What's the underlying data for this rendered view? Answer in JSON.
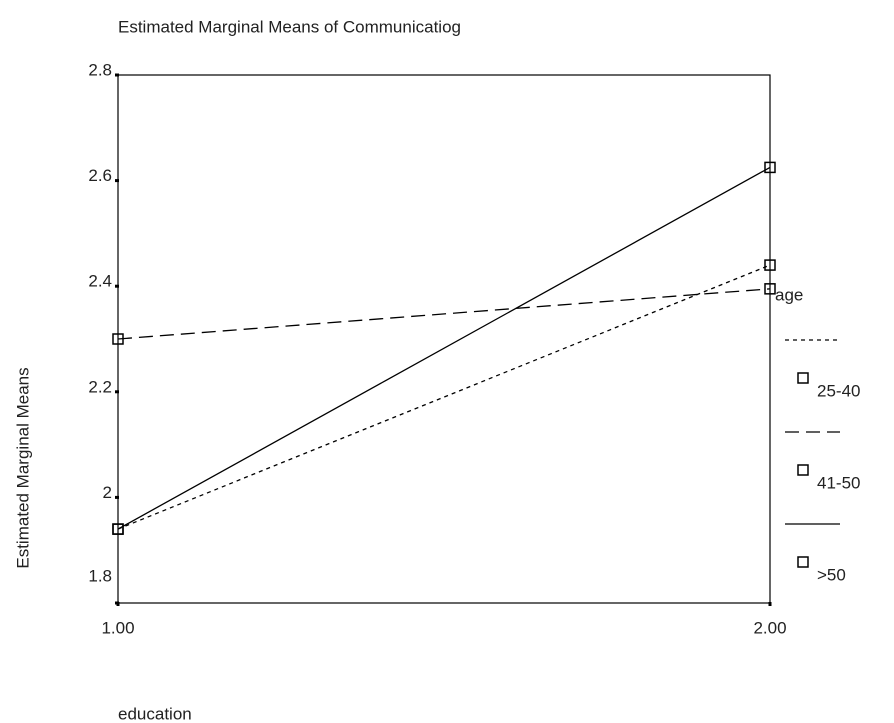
{
  "chart_data": {
    "type": "line",
    "title": "Estimated Marginal Means of Communicatiog",
    "x_label": "education",
    "y_label": "Estimated Marginal Means",
    "legend_title": "age",
    "x": [
      1,
      2
    ],
    "xlim": [
      1,
      2
    ],
    "xticks": [
      {
        "value": 1,
        "label": "1.00"
      },
      {
        "value": 2,
        "label": "2.00"
      }
    ],
    "ylim": [
      1.8,
      2.8
    ],
    "yticks": [
      1.8,
      2.0,
      2.2,
      2.4,
      2.6,
      2.8
    ],
    "series": [
      {
        "name": "25-40",
        "color": "#000000",
        "dash": "dotted",
        "values": [
          1.94,
          2.44
        ]
      },
      {
        "name": "41-50",
        "color": "#000000",
        "dash": "dashed",
        "values": [
          2.3,
          2.395
        ]
      },
      {
        "name": ">50",
        "color": "#000000",
        "dash": "solid",
        "values": [
          1.94,
          2.625
        ]
      }
    ]
  }
}
